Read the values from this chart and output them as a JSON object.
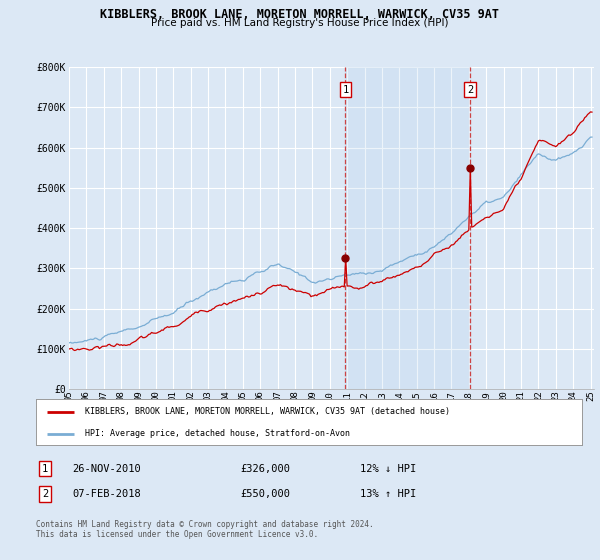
{
  "title": "KIBBLERS, BROOK LANE, MORETON MORRELL, WARWICK, CV35 9AT",
  "subtitle": "Price paid vs. HM Land Registry's House Price Index (HPI)",
  "ylim": [
    0,
    800000
  ],
  "yticks": [
    0,
    100000,
    200000,
    300000,
    400000,
    500000,
    600000,
    700000,
    800000
  ],
  "ytick_labels": [
    "£0",
    "£100K",
    "£200K",
    "£300K",
    "£400K",
    "£500K",
    "£600K",
    "£700K",
    "£800K"
  ],
  "bg_color": "#dce8f5",
  "plot_bg_color": "#dce8f5",
  "grid_color": "#c0cfe0",
  "shade_color": "#ccddf0",
  "red_color": "#cc0000",
  "blue_color": "#7aadd4",
  "vline1_x": 2010.9,
  "vline2_x": 2018.08,
  "sale1_x": 2010.9,
  "sale1_y": 326000,
  "sale2_x": 2018.08,
  "sale2_y": 550000,
  "legend_label_red": "KIBBLERS, BROOK LANE, MORETON MORRELL, WARWICK, CV35 9AT (detached house)",
  "legend_label_blue": "HPI: Average price, detached house, Stratford-on-Avon",
  "table_row1": [
    "1",
    "26-NOV-2010",
    "£326,000",
    "12% ↓ HPI"
  ],
  "table_row2": [
    "2",
    "07-FEB-2018",
    "£550,000",
    "13% ↑ HPI"
  ],
  "footer": "Contains HM Land Registry data © Crown copyright and database right 2024.\nThis data is licensed under the Open Government Licence v3.0.",
  "xlim_min": 1995.0,
  "xlim_max": 2025.2
}
